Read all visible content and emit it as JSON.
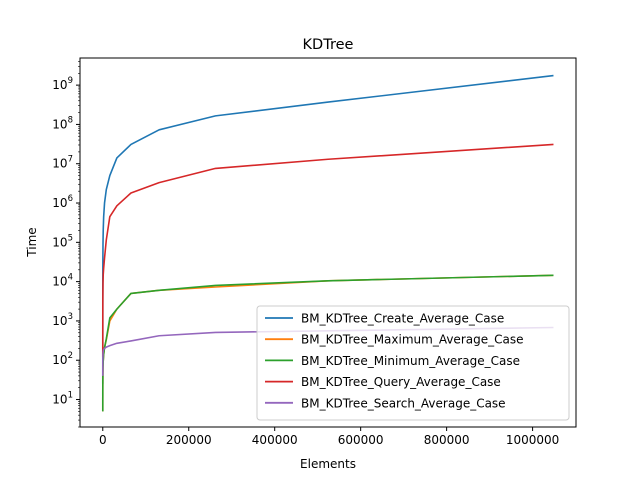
{
  "chart_data": {
    "type": "line",
    "title": "KDTree",
    "xlabel": "Elements",
    "ylabel": "Time",
    "xlim": [
      -53000,
      1101000
    ],
    "ylim": [
      2.0,
      4900000000.0
    ],
    "yscale": "log",
    "grid": false,
    "legend_position": "lower-right",
    "x_ticks": [
      {
        "value": 0,
        "label": "0"
      },
      {
        "value": 200000,
        "label": "200000"
      },
      {
        "value": 400000,
        "label": "400000"
      },
      {
        "value": 600000,
        "label": "600000"
      },
      {
        "value": 800000,
        "label": "800000"
      },
      {
        "value": 1000000,
        "label": "1000000"
      }
    ],
    "y_ticks": [
      {
        "value": 10,
        "base": "10",
        "exp": "1"
      },
      {
        "value": 100,
        "base": "10",
        "exp": "2"
      },
      {
        "value": 1000,
        "base": "10",
        "exp": "3"
      },
      {
        "value": 10000,
        "base": "10",
        "exp": "4"
      },
      {
        "value": 100000,
        "base": "10",
        "exp": "5"
      },
      {
        "value": 1000000,
        "base": "10",
        "exp": "6"
      },
      {
        "value": 10000000,
        "base": "10",
        "exp": "7"
      },
      {
        "value": 100000000,
        "base": "10",
        "exp": "8"
      },
      {
        "value": 1000000000,
        "base": "10",
        "exp": "9"
      }
    ],
    "x": [
      1,
      2,
      4,
      8,
      16,
      32,
      64,
      128,
      256,
      512,
      1024,
      2048,
      4096,
      8192,
      16384,
      32768,
      65536,
      131072,
      262144,
      524288,
      1048576
    ],
    "series": [
      {
        "name": "BM_KDTree_Create_Average_Case",
        "color": "#1f77b4",
        "values": [
          25,
          60,
          150,
          400,
          1000,
          2500,
          6500,
          17000,
          40000,
          90000,
          200000,
          450000,
          1000000,
          2200000,
          5000000,
          14000000,
          31000000,
          73000000,
          165000000,
          370000000,
          1750000000
        ]
      },
      {
        "name": "BM_KDTree_Maximum_Average_Case",
        "color": "#ff7f0e",
        "values": [
          5,
          6,
          8,
          10,
          12,
          16,
          22,
          30,
          45,
          65,
          95,
          140,
          210,
          330,
          1000,
          2000,
          5000,
          6000,
          7300,
          10500,
          14500
        ]
      },
      {
        "name": "BM_KDTree_Minimum_Average_Case",
        "color": "#2ca02c",
        "values": [
          5,
          6,
          8,
          10,
          12,
          16,
          22,
          30,
          45,
          65,
          95,
          140,
          210,
          350,
          1200,
          2000,
          5000,
          6000,
          8000,
          10500,
          14500
        ]
      },
      {
        "name": "BM_KDTree_Query_Average_Case",
        "color": "#d62728",
        "values": [
          120,
          200,
          320,
          500,
          800,
          1300,
          2000,
          3000,
          5000,
          9000,
          15000,
          22000,
          40000,
          115000,
          450000,
          850000,
          1800000,
          3300000,
          7600000,
          13000000,
          31000000
        ]
      },
      {
        "name": "BM_KDTree_Search_Average_Case",
        "color": "#9467bd",
        "values": [
          40,
          50,
          60,
          70,
          80,
          90,
          100,
          115,
          130,
          150,
          170,
          190,
          200,
          215,
          235,
          270,
          310,
          420,
          510,
          560,
          680
        ]
      }
    ]
  }
}
